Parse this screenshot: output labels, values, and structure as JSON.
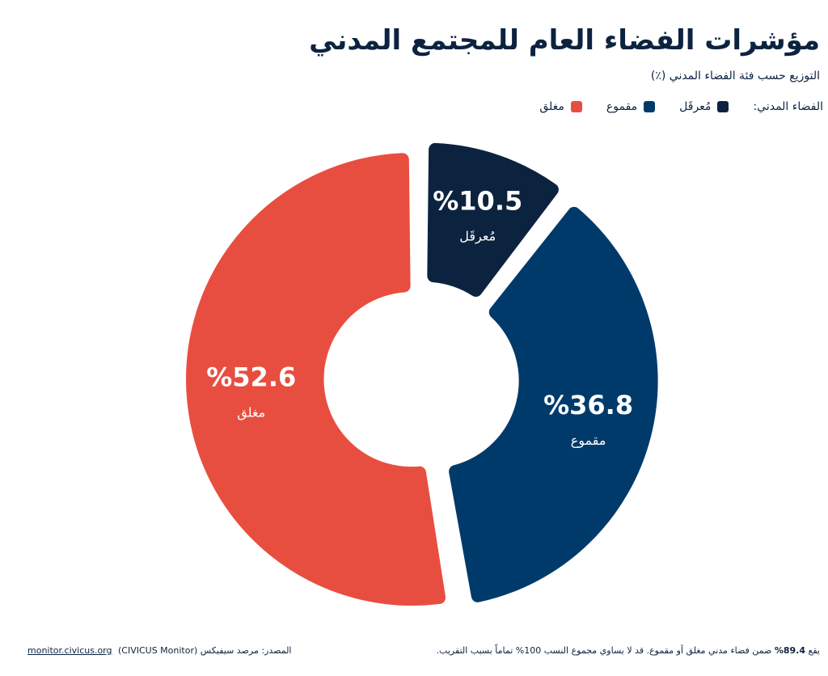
{
  "chart_data": {
    "type": "pie",
    "donut": true,
    "title": "مؤشرات الفضاء العام للمجتمع المدني",
    "subtitle": "التوزيع حسب فئة الفضاء المدني (٪)",
    "legend_title": "الفضاء المدني:",
    "categories": [
      "مُعرقَل",
      "مقموع",
      "مغلق"
    ],
    "values": [
      10.5,
      36.8,
      52.6
    ],
    "value_labels": [
      "%10.5",
      "%36.8",
      "%52.6"
    ],
    "colors": [
      "#0c2340",
      "#003a6b",
      "#e84e3f"
    ],
    "note_prefix": "يقع",
    "note_bold": "89.4%",
    "note_rest": "ضمن فضاء مدني مغلق أو مقموع. قد لا يساوي مجموع النسب 100% تماماً بسبب التقريب.",
    "source_label": "المصدر: مرصد سيفيكس (CIVICUS Monitor)",
    "source_link": "monitor.civicus.org"
  }
}
